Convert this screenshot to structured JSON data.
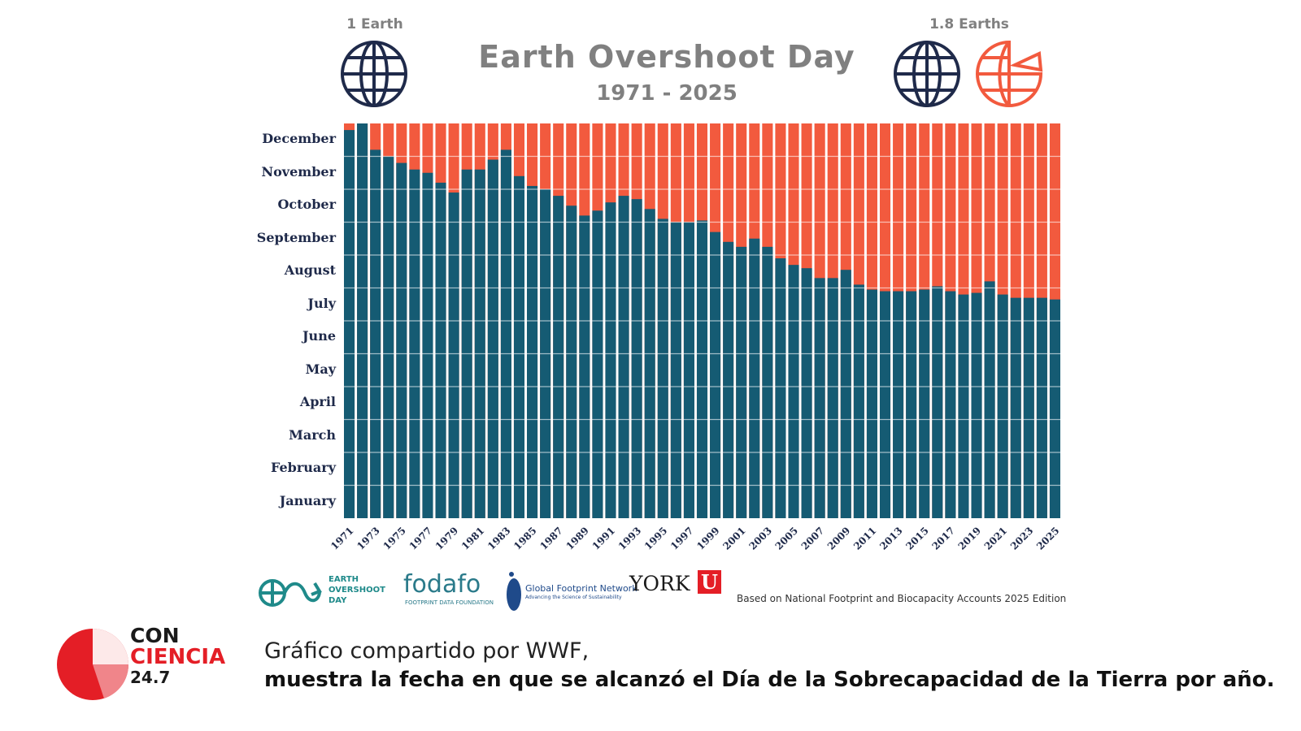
{
  "header": {
    "title": "Earth Overshoot Day",
    "subtitle": "1971 - 2025",
    "left_label": "1 Earth",
    "right_label": "1.8 Earths"
  },
  "colors": {
    "bar": "#155b73",
    "overshoot": "#f25a3e",
    "label": "#1f2a4a",
    "title": "#808080",
    "globe_dark": "#1f2a4a",
    "brand_red": "#e41e26"
  },
  "chart_data": {
    "type": "bar",
    "title": "Earth Overshoot Day",
    "subtitle": "1971 - 2025",
    "x": [
      1971,
      1972,
      1973,
      1974,
      1975,
      1976,
      1977,
      1978,
      1979,
      1980,
      1981,
      1982,
      1983,
      1984,
      1985,
      1986,
      1987,
      1988,
      1989,
      1990,
      1991,
      1992,
      1993,
      1994,
      1995,
      1996,
      1997,
      1998,
      1999,
      2000,
      2001,
      2002,
      2003,
      2004,
      2005,
      2006,
      2007,
      2008,
      2009,
      2010,
      2011,
      2012,
      2013,
      2014,
      2015,
      2016,
      2017,
      2018,
      2019,
      2020,
      2021,
      2022,
      2023,
      2024,
      2025
    ],
    "x_tick_labels": [
      "1971",
      "1973",
      "1975",
      "1977",
      "1979",
      "1981",
      "1983",
      "1985",
      "1987",
      "1989",
      "1991",
      "1993",
      "1995",
      "1997",
      "1999",
      "2001",
      "2003",
      "2005",
      "2007",
      "2009",
      "2011",
      "2013",
      "2015",
      "2017",
      "2019",
      "2021",
      "2023",
      "2025"
    ],
    "y_unit": "month of year (0 = Jan 1, 12 = Dec 31)",
    "ylim": [
      0,
      12
    ],
    "values": [
      11.8,
      12.0,
      11.2,
      11.0,
      10.8,
      10.6,
      10.5,
      10.2,
      9.9,
      10.6,
      10.6,
      10.9,
      11.2,
      10.4,
      10.1,
      10.0,
      9.8,
      9.5,
      9.2,
      9.35,
      9.6,
      9.8,
      9.7,
      9.4,
      9.1,
      9.0,
      9.0,
      9.05,
      8.7,
      8.4,
      8.25,
      8.5,
      8.25,
      7.9,
      7.7,
      7.6,
      7.3,
      7.3,
      7.55,
      7.1,
      6.95,
      6.9,
      6.9,
      6.9,
      6.95,
      7.05,
      6.9,
      6.8,
      6.85,
      7.2,
      6.8,
      6.7,
      6.7,
      6.7,
      6.65
    ],
    "y_tick_labels": [
      "January",
      "February",
      "March",
      "April",
      "May",
      "June",
      "July",
      "August",
      "September",
      "October",
      "November",
      "December"
    ],
    "legend": [
      "1 Earth",
      "1.8 Earths"
    ]
  },
  "footer": {
    "logo_eod_line1": "EARTH",
    "logo_eod_line2": "OVERSHOOT",
    "logo_eod_line3": "DAY",
    "logo_fodafo": "fodafo",
    "logo_fodafo_sub": "FOOTPRINT DATA FOUNDATION",
    "logo_gfn": "Global Footprint Network",
    "logo_gfn_sub": "Advancing the Science of Sustainability",
    "logo_york": "YORK",
    "logo_york_u": "U",
    "source": "Based on National Footprint and Biocapacity Accounts 2025 Edition"
  },
  "caption": {
    "line1": "Gráfico compartido por WWF,",
    "line2": "muestra la fecha en que se alcanzó el Día de la Sobrecapacidad de la Tierra por año."
  },
  "brand": {
    "line1": "CON",
    "line2": "CIENCIA",
    "line3": "24.7"
  }
}
